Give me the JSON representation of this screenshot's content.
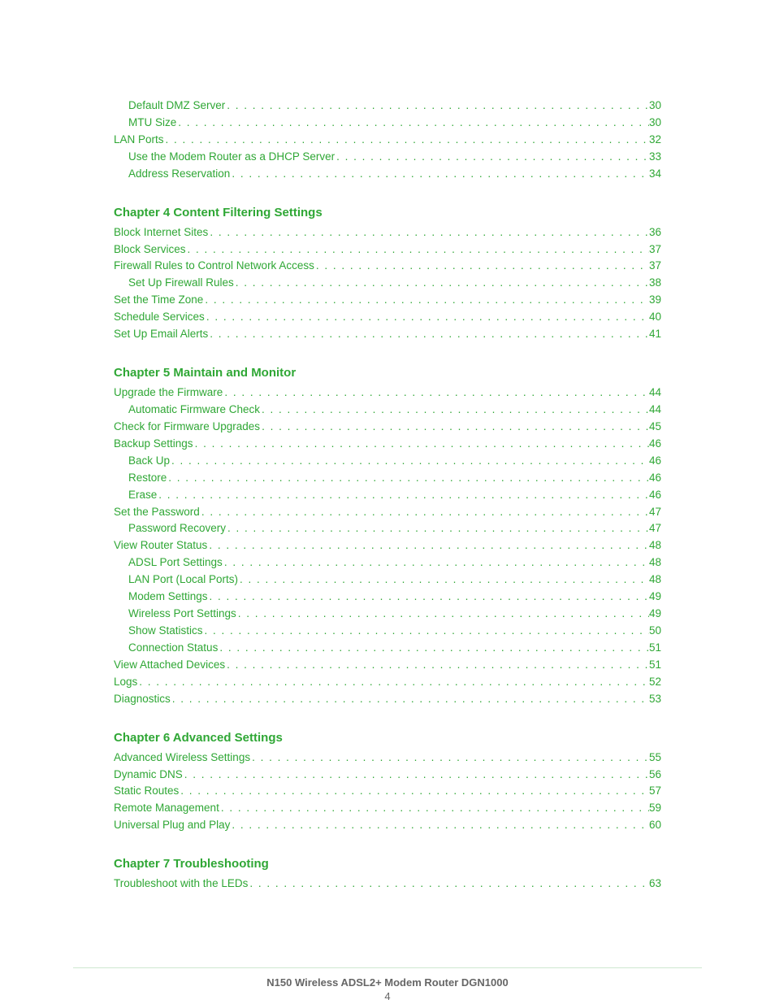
{
  "colors": {
    "link": "#2fa735",
    "page_bg": "#ffffff",
    "footer_text": "#666666",
    "footer_rule": "#cfe8d0"
  },
  "typography": {
    "body_font": "Arial",
    "toc_fontsize_pt": 10,
    "heading_fontsize_pt": 11,
    "footer_fontsize_pt": 10
  },
  "dots_fill": ". . . . . . . . . . . . . . . . . . . . . . . . . . . . . . . . . . . . . . . . . . . . . . . . . . . . . . . . . . . . . . . . . . . . . . . . . . . . . . . . . . . . . . . . . . . . . . . . . . . . . . . .",
  "chapters": [
    {
      "heading": null,
      "entries": [
        {
          "title": "Default DMZ Server",
          "page": "30",
          "indent": 1
        },
        {
          "title": "MTU Size",
          "page": "30",
          "indent": 1
        },
        {
          "title": "LAN Ports",
          "page": "32",
          "indent": 0
        },
        {
          "title": "Use the Modem Router as a DHCP Server",
          "page": "33",
          "indent": 1
        },
        {
          "title": "Address Reservation",
          "page": "34",
          "indent": 1
        }
      ]
    },
    {
      "heading": "Chapter 4 Content Filtering Settings",
      "entries": [
        {
          "title": "Block Internet Sites",
          "page": "36",
          "indent": 0
        },
        {
          "title": "Block Services",
          "page": "37",
          "indent": 0
        },
        {
          "title": "Firewall Rules to Control Network Access",
          "page": "37",
          "indent": 0
        },
        {
          "title": "Set Up Firewall Rules",
          "page": "38",
          "indent": 1
        },
        {
          "title": "Set the Time Zone",
          "page": "39",
          "indent": 0
        },
        {
          "title": "Schedule Services",
          "page": "40",
          "indent": 0
        },
        {
          "title": "Set Up Email Alerts",
          "page": "41",
          "indent": 0
        }
      ]
    },
    {
      "heading": "Chapter 5 Maintain and Monitor",
      "entries": [
        {
          "title": "Upgrade the Firmware",
          "page": "44",
          "indent": 0
        },
        {
          "title": "Automatic Firmware Check",
          "page": "44",
          "indent": 1
        },
        {
          "title": "Check for Firmware Upgrades",
          "page": "45",
          "indent": 0
        },
        {
          "title": "Backup Settings",
          "page": "46",
          "indent": 0
        },
        {
          "title": "Back Up",
          "page": "46",
          "indent": 1
        },
        {
          "title": "Restore",
          "page": "46",
          "indent": 1
        },
        {
          "title": "Erase",
          "page": "46",
          "indent": 1
        },
        {
          "title": "Set the Password",
          "page": "47",
          "indent": 0
        },
        {
          "title": "Password Recovery",
          "page": "47",
          "indent": 1
        },
        {
          "title": "View Router Status",
          "page": "48",
          "indent": 0
        },
        {
          "title": "ADSL Port Settings",
          "page": "48",
          "indent": 1
        },
        {
          "title": "LAN Port (Local Ports)",
          "page": "48",
          "indent": 1
        },
        {
          "title": "Modem Settings",
          "page": "49",
          "indent": 1
        },
        {
          "title": "Wireless Port Settings",
          "page": "49",
          "indent": 1
        },
        {
          "title": "Show Statistics",
          "page": "50",
          "indent": 1
        },
        {
          "title": "Connection Status",
          "page": "51",
          "indent": 1
        },
        {
          "title": "View Attached Devices",
          "page": "51",
          "indent": 0
        },
        {
          "title": "Logs",
          "page": "52",
          "indent": 0
        },
        {
          "title": "Diagnostics",
          "page": "53",
          "indent": 0
        }
      ]
    },
    {
      "heading": "Chapter 6 Advanced Settings",
      "entries": [
        {
          "title": "Advanced Wireless Settings",
          "page": "55",
          "indent": 0
        },
        {
          "title": "Dynamic DNS",
          "page": "56",
          "indent": 0
        },
        {
          "title": "Static Routes",
          "page": "57",
          "indent": 0
        },
        {
          "title": "Remote Management",
          "page": "59",
          "indent": 0
        },
        {
          "title": "Universal Plug and Play",
          "page": "60",
          "indent": 0
        }
      ]
    },
    {
      "heading": "Chapter 7 Troubleshooting",
      "entries": [
        {
          "title": "Troubleshoot with the LEDs",
          "page": "63",
          "indent": 0
        }
      ]
    }
  ],
  "footer": {
    "product": "N150 Wireless ADSL2+ Modem Router DGN1000",
    "page_number": "4"
  }
}
